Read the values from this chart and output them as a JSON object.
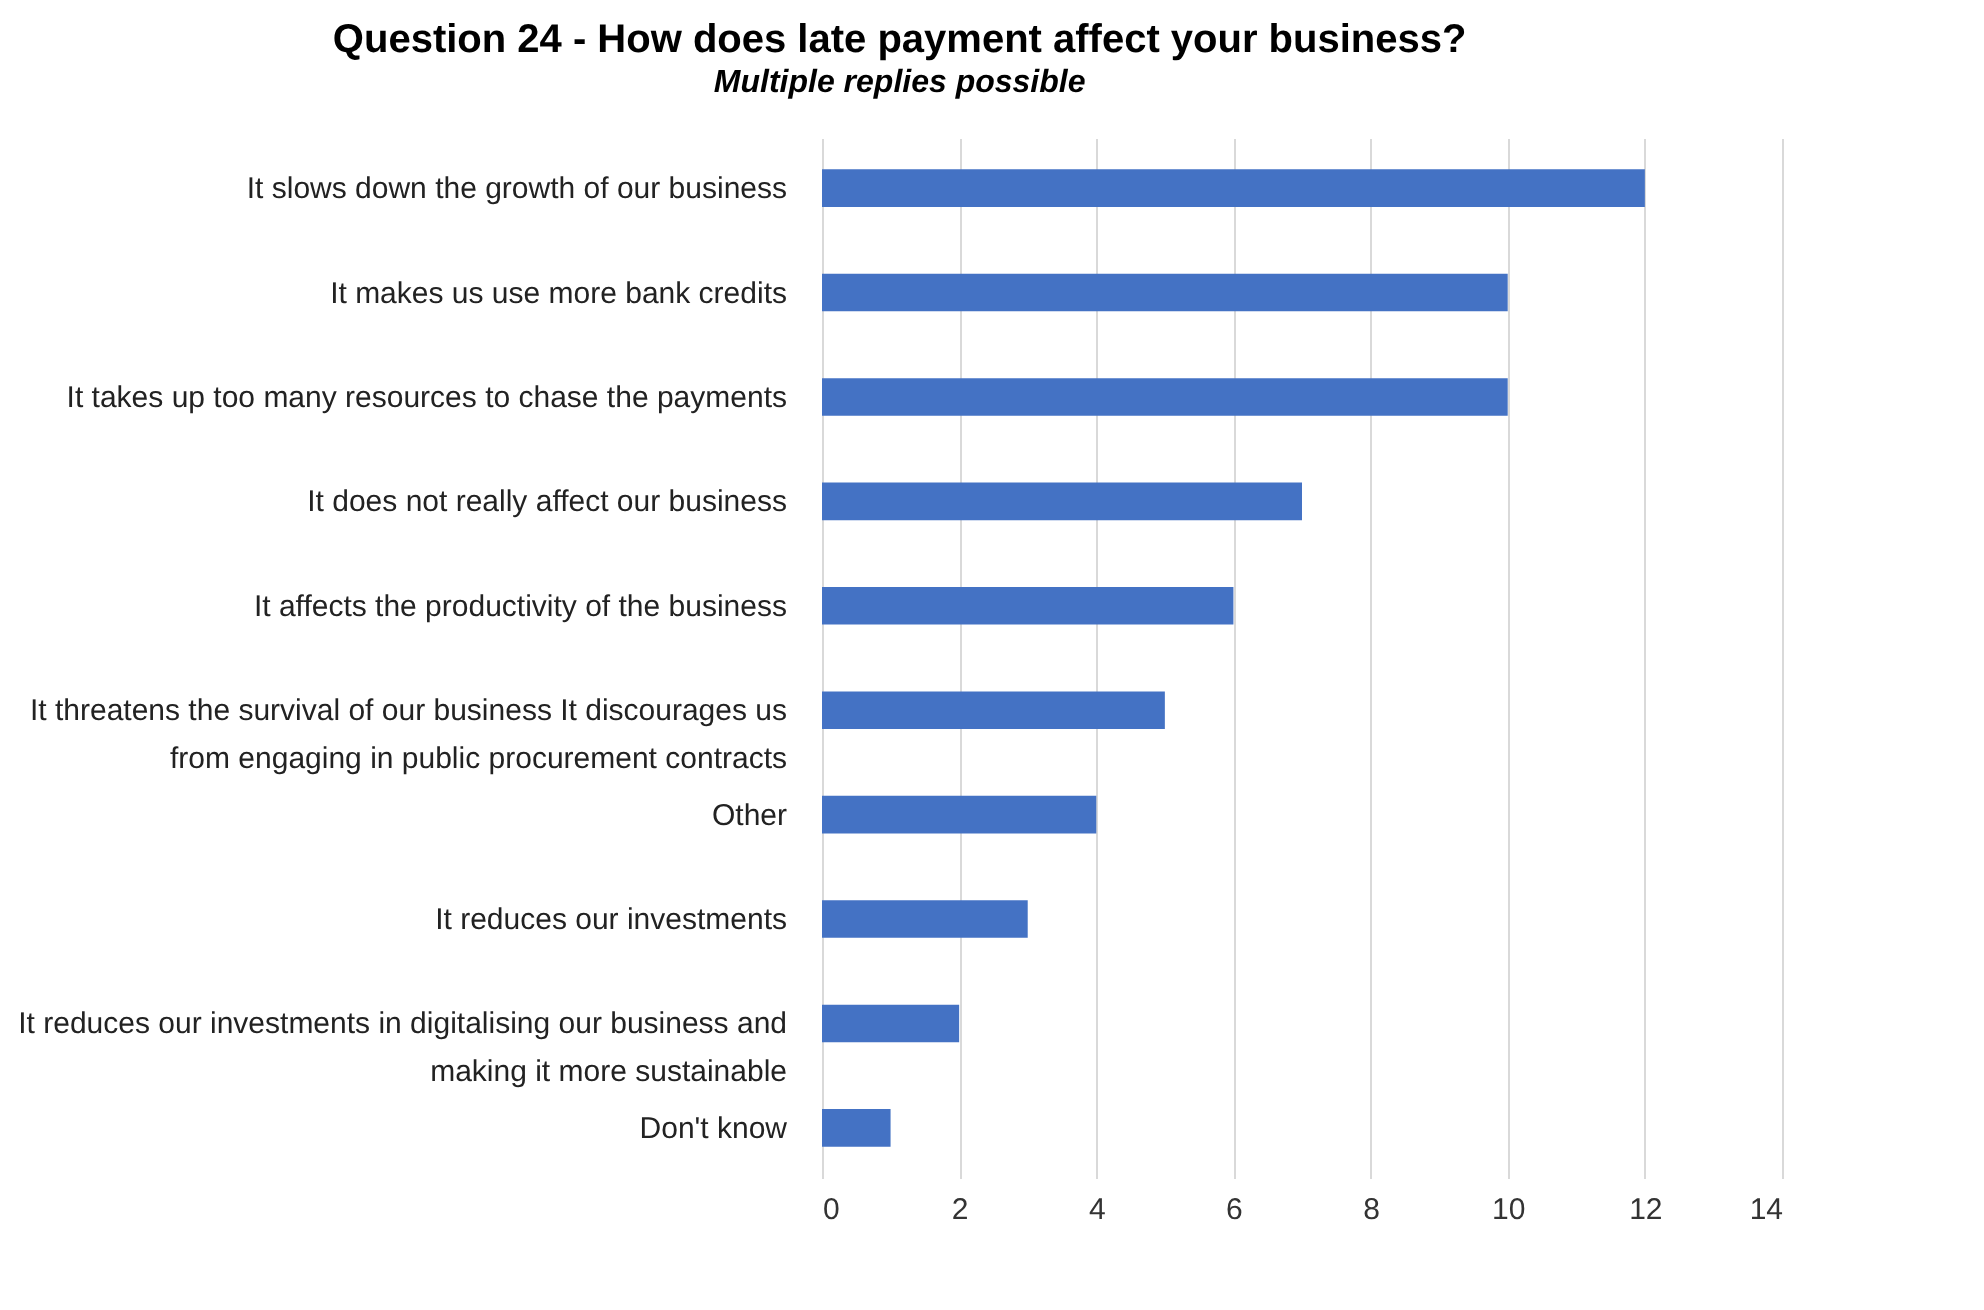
{
  "chart_data": {
    "type": "bar",
    "orientation": "horizontal",
    "title": "Question 24 - How does late payment affect your business?",
    "subtitle": "Multiple replies possible",
    "categories": [
      "It slows down the growth of our business",
      "It makes us use more bank credits",
      "It takes up too many resources to chase the payments",
      "It does not really affect our business",
      "It affects the productivity of the business",
      "It threatens the survival of our business It discourages us from engaging in public procurement contracts",
      "Other",
      "It reduces our investments",
      "It reduces our investments in digitalising our business and making it more sustainable",
      "Don't know"
    ],
    "values": [
      12,
      10,
      10,
      7,
      6,
      5,
      4,
      3,
      2,
      1
    ],
    "color": "#4472c4",
    "xlim": [
      0,
      14
    ],
    "xticks": [
      0,
      2,
      4,
      6,
      8,
      10,
      12,
      14
    ],
    "grid": "x"
  }
}
